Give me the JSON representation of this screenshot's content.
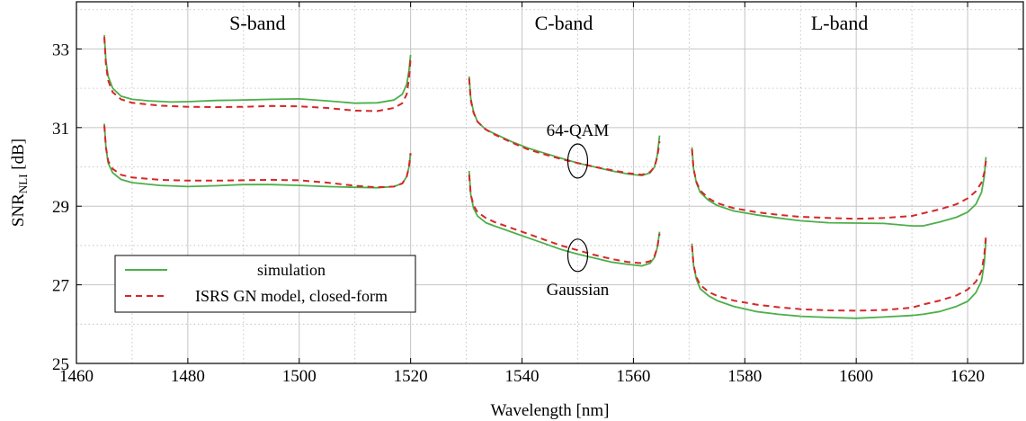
{
  "chart_data": {
    "type": "line",
    "xlabel": "Wavelength [nm]",
    "ylabel": {
      "main": "SNR",
      "sub": "NLI",
      "unit": " [dB]"
    },
    "xlim": [
      1460,
      1630
    ],
    "ylim": [
      25,
      34.2
    ],
    "xticks": [
      1460,
      1480,
      1500,
      1520,
      1540,
      1560,
      1580,
      1600,
      1620
    ],
    "yticks": [
      25,
      27,
      29,
      31,
      33
    ],
    "grid": {
      "major": true,
      "minor": "dotted"
    },
    "legend": {
      "position": "bottom-left",
      "entries": [
        {
          "label": "simulation",
          "color": "#4daf4a",
          "dash": "solid"
        },
        {
          "label": "ISRS GN model, closed-form",
          "color": "#d62728",
          "dash": "dashed"
        }
      ]
    },
    "band_labels": [
      {
        "text": "S-band",
        "x": 1492.5
      },
      {
        "text": "C-band",
        "x": 1547.5
      },
      {
        "text": "L-band",
        "x": 1597
      }
    ],
    "annotations": [
      {
        "text": "64-QAM",
        "x": 1550,
        "y": 30.15
      },
      {
        "text": "Gaussian",
        "x": 1550,
        "y": 27.75
      }
    ],
    "series": [
      {
        "band": "S",
        "format": "64-QAM",
        "kind": "simulation",
        "x": [
          1465,
          1465.3,
          1465.7,
          1466.5,
          1468,
          1470,
          1473,
          1477,
          1480,
          1485,
          1490,
          1495,
          1500,
          1505,
          1510,
          1514,
          1517,
          1518.5,
          1519.3,
          1519.7,
          1520
        ],
        "y": [
          33.35,
          32.7,
          32.3,
          32.0,
          31.8,
          31.72,
          31.68,
          31.65,
          31.66,
          31.69,
          31.7,
          31.72,
          31.73,
          31.68,
          31.62,
          31.63,
          31.7,
          31.85,
          32.1,
          32.45,
          32.85
        ]
      },
      {
        "band": "S",
        "format": "64-QAM",
        "kind": "model",
        "x": [
          1465,
          1465.3,
          1465.7,
          1466.5,
          1468,
          1470,
          1475,
          1480,
          1485,
          1490,
          1495,
          1500,
          1505,
          1510,
          1514,
          1517,
          1518.5,
          1519.3,
          1519.7,
          1520
        ],
        "y": [
          33.3,
          32.6,
          32.2,
          31.9,
          31.72,
          31.63,
          31.56,
          31.53,
          31.52,
          31.53,
          31.55,
          31.54,
          31.5,
          31.43,
          31.42,
          31.5,
          31.62,
          31.85,
          32.25,
          32.75
        ]
      },
      {
        "band": "S",
        "format": "Gaussian",
        "kind": "simulation",
        "x": [
          1465,
          1465.3,
          1465.7,
          1466.5,
          1468,
          1470,
          1475,
          1480,
          1485,
          1490,
          1495,
          1500,
          1505,
          1510,
          1514,
          1517,
          1518.5,
          1519.3,
          1519.7,
          1520
        ],
        "y": [
          31.1,
          30.5,
          30.1,
          29.85,
          29.68,
          29.6,
          29.53,
          29.5,
          29.52,
          29.55,
          29.55,
          29.53,
          29.5,
          29.48,
          29.47,
          29.5,
          29.58,
          29.75,
          30.0,
          30.35
        ]
      },
      {
        "band": "S",
        "format": "Gaussian",
        "kind": "model",
        "x": [
          1465,
          1465.3,
          1465.7,
          1466.5,
          1468,
          1470,
          1475,
          1480,
          1485,
          1490,
          1495,
          1500,
          1505,
          1510,
          1514,
          1517,
          1518.5,
          1519.3,
          1519.7,
          1520
        ],
        "y": [
          31.05,
          30.5,
          30.15,
          29.95,
          29.8,
          29.73,
          29.67,
          29.65,
          29.65,
          29.66,
          29.67,
          29.66,
          29.6,
          29.52,
          29.48,
          29.5,
          29.58,
          29.75,
          30.0,
          30.35
        ]
      },
      {
        "band": "C",
        "format": "64-QAM",
        "kind": "simulation",
        "x": [
          1530.5,
          1530.8,
          1531.3,
          1532,
          1533.5,
          1535,
          1538,
          1541,
          1544,
          1547,
          1550,
          1553,
          1556,
          1559,
          1561.5,
          1563,
          1563.8,
          1564.3,
          1564.7
        ],
        "y": [
          32.3,
          31.75,
          31.4,
          31.15,
          30.95,
          30.85,
          30.65,
          30.48,
          30.35,
          30.22,
          30.1,
          30.0,
          29.9,
          29.82,
          29.78,
          29.85,
          30.0,
          30.3,
          30.8
        ]
      },
      {
        "band": "C",
        "format": "64-QAM",
        "kind": "model",
        "x": [
          1530.5,
          1530.8,
          1531.3,
          1532,
          1533.5,
          1535,
          1538,
          1541,
          1544,
          1547,
          1550,
          1553,
          1556,
          1559,
          1561.5,
          1563,
          1563.8,
          1564.3,
          1564.7
        ],
        "y": [
          32.25,
          31.7,
          31.38,
          31.15,
          30.95,
          30.83,
          30.63,
          30.45,
          30.32,
          30.2,
          30.1,
          30.0,
          29.92,
          29.84,
          29.8,
          29.87,
          30.0,
          30.25,
          30.65
        ]
      },
      {
        "band": "C",
        "format": "Gaussian",
        "kind": "simulation",
        "x": [
          1530.5,
          1530.8,
          1531.3,
          1532,
          1533.5,
          1535,
          1538,
          1541,
          1544,
          1547,
          1550,
          1553,
          1556,
          1559,
          1561.5,
          1563,
          1563.8,
          1564.3,
          1564.7
        ],
        "y": [
          29.9,
          29.3,
          28.95,
          28.75,
          28.58,
          28.5,
          28.35,
          28.2,
          28.05,
          27.9,
          27.78,
          27.68,
          27.58,
          27.52,
          27.48,
          27.55,
          27.7,
          27.95,
          28.35
        ]
      },
      {
        "band": "C",
        "format": "Gaussian",
        "kind": "model",
        "x": [
          1530.5,
          1530.8,
          1531.3,
          1532,
          1533.5,
          1535,
          1538,
          1541,
          1544,
          1547,
          1550,
          1553,
          1556,
          1559,
          1561.5,
          1563,
          1563.8,
          1564.3,
          1564.7
        ],
        "y": [
          29.8,
          29.3,
          29.02,
          28.85,
          28.7,
          28.6,
          28.45,
          28.3,
          28.15,
          28.0,
          27.88,
          27.76,
          27.66,
          27.58,
          27.55,
          27.6,
          27.73,
          27.95,
          28.3
        ]
      },
      {
        "band": "L",
        "format": "64-QAM",
        "kind": "simulation",
        "x": [
          1570.5,
          1570.8,
          1571.3,
          1572,
          1573.5,
          1575,
          1578,
          1582,
          1586,
          1590,
          1595,
          1600,
          1605,
          1610,
          1612,
          1615,
          1618,
          1620,
          1621.5,
          1622.5,
          1623,
          1623.3
        ],
        "y": [
          30.5,
          29.95,
          29.6,
          29.35,
          29.15,
          29.02,
          28.88,
          28.78,
          28.7,
          28.63,
          28.58,
          28.57,
          28.56,
          28.5,
          28.5,
          28.6,
          28.72,
          28.85,
          29.05,
          29.35,
          29.75,
          30.25
        ]
      },
      {
        "band": "L",
        "format": "64-QAM",
        "kind": "model",
        "x": [
          1570.5,
          1570.8,
          1571.3,
          1572,
          1573.5,
          1575,
          1578,
          1582,
          1586,
          1590,
          1595,
          1600,
          1605,
          1610,
          1612,
          1615,
          1618,
          1620,
          1621.5,
          1622.5,
          1623,
          1623.3
        ],
        "y": [
          30.45,
          29.95,
          29.62,
          29.4,
          29.2,
          29.08,
          28.95,
          28.85,
          28.78,
          28.73,
          28.7,
          28.68,
          28.7,
          28.75,
          28.82,
          28.92,
          29.05,
          29.2,
          29.38,
          29.6,
          29.85,
          30.15
        ]
      },
      {
        "band": "L",
        "format": "Gaussian",
        "kind": "simulation",
        "x": [
          1570.5,
          1570.8,
          1571.3,
          1572,
          1573.5,
          1575,
          1578,
          1582,
          1586,
          1590,
          1595,
          1600,
          1605,
          1610,
          1612,
          1615,
          1618,
          1620,
          1621.5,
          1622.5,
          1623,
          1623.3
        ],
        "y": [
          28.05,
          27.5,
          27.15,
          26.9,
          26.72,
          26.6,
          26.45,
          26.32,
          26.25,
          26.2,
          26.17,
          26.15,
          26.18,
          26.22,
          26.25,
          26.32,
          26.45,
          26.58,
          26.8,
          27.1,
          27.55,
          28.15
        ]
      },
      {
        "band": "L",
        "format": "Gaussian",
        "kind": "model",
        "x": [
          1570.5,
          1570.8,
          1571.3,
          1572,
          1573.5,
          1575,
          1578,
          1582,
          1586,
          1590,
          1595,
          1600,
          1605,
          1610,
          1612,
          1615,
          1618,
          1620,
          1621.5,
          1622.5,
          1623,
          1623.3
        ],
        "y": [
          28.0,
          27.5,
          27.2,
          27.0,
          26.82,
          26.72,
          26.6,
          26.5,
          26.43,
          26.38,
          26.35,
          26.34,
          26.36,
          26.42,
          26.5,
          26.6,
          26.73,
          26.88,
          27.08,
          27.35,
          27.75,
          28.25
        ]
      }
    ]
  }
}
